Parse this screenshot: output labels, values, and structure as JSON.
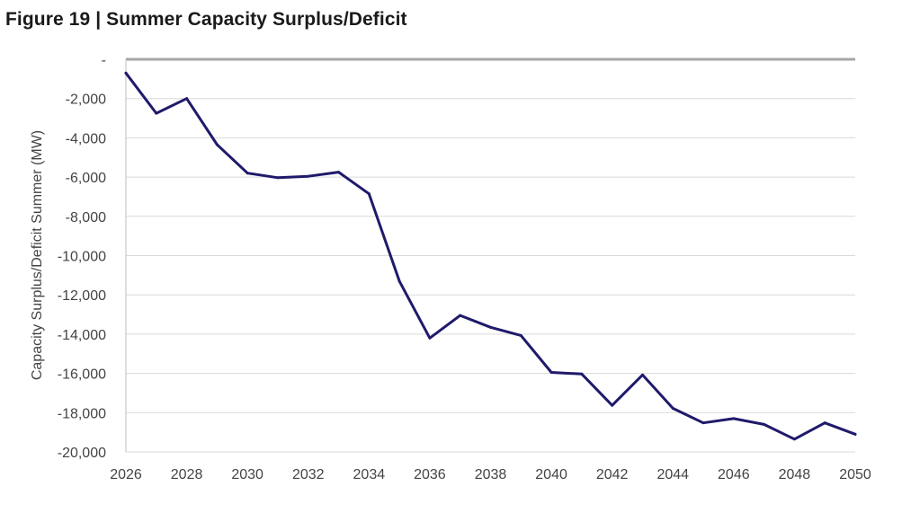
{
  "figure": {
    "title": "Figure 19 | Summer Capacity Surplus/Deficit"
  },
  "chart_data": {
    "type": "line",
    "title": "Figure 19 | Summer Capacity Surplus/Deficit",
    "xlabel": "",
    "ylabel": "Capacity Surplus/Deficit  Summer  (MW)",
    "xlim": [
      2026,
      2050
    ],
    "ylim": [
      -20000,
      0
    ],
    "x_ticks": [
      2026,
      2028,
      2030,
      2032,
      2034,
      2036,
      2038,
      2040,
      2042,
      2044,
      2046,
      2048,
      2050
    ],
    "y_ticks": [
      0,
      -2000,
      -4000,
      -6000,
      -8000,
      -10000,
      -12000,
      -14000,
      -16000,
      -18000,
      -20000
    ],
    "y_tick_labels": [
      "-",
      "-2,000",
      "-4,000",
      "-6,000",
      "-8,000",
      "-10,000",
      "-12,000",
      "-14,000",
      "-16,000",
      "-18,000",
      "-20,000"
    ],
    "grid": true,
    "series": [
      {
        "name": "Summer Capacity Surplus/Deficit",
        "color": "#1f1a6b",
        "x": [
          2026,
          2027,
          2028,
          2029,
          2030,
          2031,
          2032,
          2033,
          2034,
          2035,
          2036,
          2037,
          2038,
          2039,
          2040,
          2041,
          2042,
          2043,
          2044,
          2045,
          2046,
          2047,
          2048,
          2049,
          2050
        ],
        "values": [
          -700,
          -2750,
          -2000,
          -4350,
          -5800,
          -6030,
          -5960,
          -5750,
          -6850,
          -11300,
          -14200,
          -13050,
          -13650,
          -14070,
          -15950,
          -16030,
          -17630,
          -16080,
          -17780,
          -18520,
          -18300,
          -18600,
          -19350,
          -18520,
          -19100
        ]
      }
    ]
  }
}
